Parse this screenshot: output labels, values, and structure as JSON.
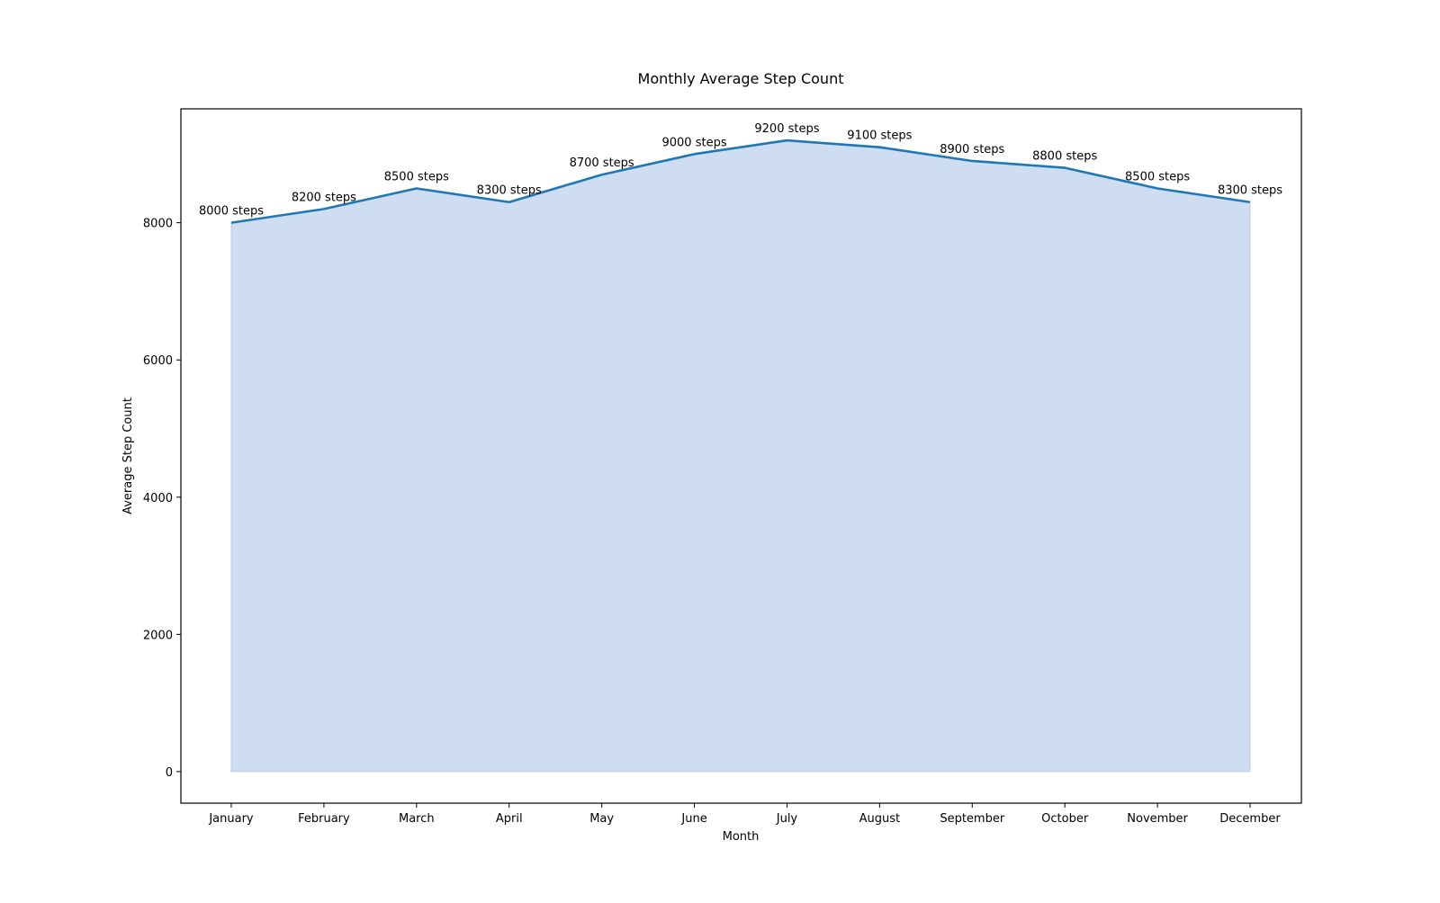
{
  "chart_data": {
    "type": "area",
    "title": "Monthly Average Step Count",
    "xlabel": "Month",
    "ylabel": "Average Step Count",
    "categories": [
      "January",
      "February",
      "March",
      "April",
      "May",
      "June",
      "July",
      "August",
      "September",
      "October",
      "November",
      "December"
    ],
    "values": [
      8000,
      8200,
      8500,
      8300,
      8700,
      9000,
      9200,
      9100,
      8900,
      8800,
      8500,
      8300
    ],
    "data_label_suffix": " steps",
    "yticks": [
      0,
      2000,
      4000,
      6000,
      8000
    ],
    "ylim": [
      -460,
      9660
    ],
    "grid": false,
    "legend": "none",
    "colors": {
      "line": "#1f77b4",
      "fill": "#aec7e8",
      "fill_opacity": 0.6,
      "frame": "#000000",
      "text": "#000000"
    }
  }
}
